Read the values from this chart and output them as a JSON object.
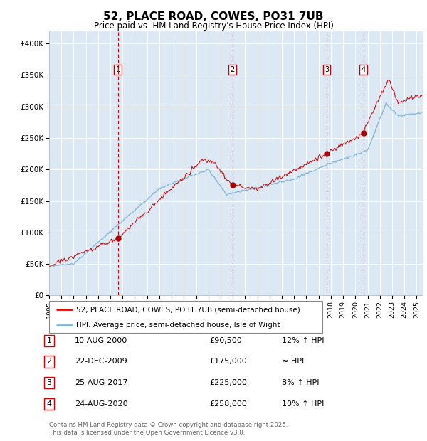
{
  "title": "52, PLACE ROAD, COWES, PO31 7UB",
  "subtitle": "Price paid vs. HM Land Registry's House Price Index (HPI)",
  "ylim": [
    0,
    420000
  ],
  "yticks": [
    0,
    50000,
    100000,
    150000,
    200000,
    250000,
    300000,
    350000,
    400000
  ],
  "ytick_labels": [
    "£0",
    "£50K",
    "£100K",
    "£150K",
    "£200K",
    "£250K",
    "£300K",
    "£350K",
    "£400K"
  ],
  "xlim_start": 1995.0,
  "xlim_end": 2025.5,
  "xtick_years": [
    1995,
    1996,
    1997,
    1998,
    1999,
    2000,
    2001,
    2002,
    2003,
    2004,
    2005,
    2006,
    2007,
    2008,
    2009,
    2010,
    2011,
    2012,
    2013,
    2014,
    2015,
    2016,
    2017,
    2018,
    2019,
    2020,
    2021,
    2022,
    2023,
    2024,
    2025
  ],
  "background_color": "#FFFFFF",
  "plot_bg_color": "#DCE9F5",
  "grid_color": "#FFFFFF",
  "hpi_line_color": "#7EB6D9",
  "price_line_color": "#CC1111",
  "vline_color": "#CC0000",
  "sale_marker_color": "#AA0000",
  "transactions": [
    {
      "num": 1,
      "date_label": "10-AUG-2000",
      "x": 2000.61,
      "price": 90500,
      "hpi_note": "12% ↑ HPI"
    },
    {
      "num": 2,
      "date_label": "22-DEC-2009",
      "x": 2009.97,
      "price": 175000,
      "hpi_note": "≈ HPI"
    },
    {
      "num": 3,
      "date_label": "25-AUG-2017",
      "x": 2017.65,
      "price": 225000,
      "hpi_note": "8% ↑ HPI"
    },
    {
      "num": 4,
      "date_label": "24-AUG-2020",
      "x": 2020.65,
      "price": 258000,
      "hpi_note": "10% ↑ HPI"
    }
  ],
  "legend_price_label": "52, PLACE ROAD, COWES, PO31 7UB (semi-detached house)",
  "legend_hpi_label": "HPI: Average price, semi-detached house, Isle of Wight",
  "footer": "Contains HM Land Registry data © Crown copyright and database right 2025.\nThis data is licensed under the Open Government Licence v3.0."
}
